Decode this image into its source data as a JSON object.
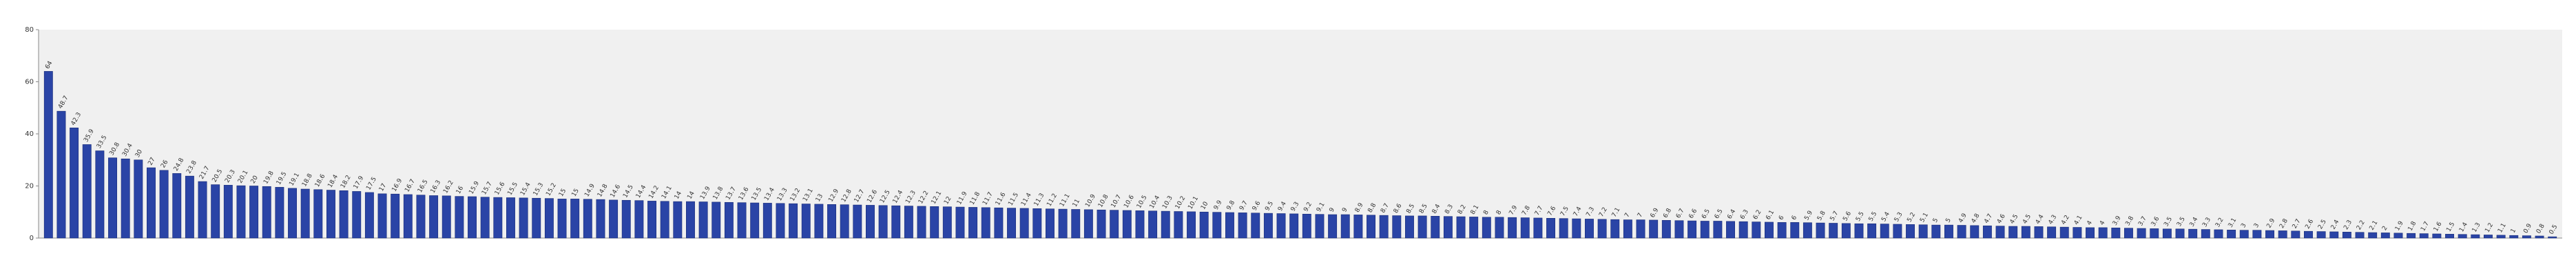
{
  "chart_data": {
    "type": "bar",
    "color": "#2a44a6",
    "ylim": [
      0,
      80
    ],
    "yticks": [
      0,
      20,
      40,
      60,
      80
    ],
    "grid": false,
    "values": [
      64,
      48.7,
      42.3,
      35.9,
      33.5,
      30.8,
      30.4,
      30,
      27,
      26,
      24.8,
      23.8,
      21.7,
      20.5,
      20.3,
      20.1,
      20,
      19.8,
      19.5,
      19.1,
      18.8,
      18.6,
      18.4,
      18.2,
      17.9,
      17.5,
      17,
      16.9,
      16.7,
      16.5,
      16.3,
      16.2,
      16,
      15.9,
      15.7,
      15.6,
      15.5,
      15.4,
      15.3,
      15.2,
      15,
      15,
      14.9,
      14.8,
      14.6,
      14.5,
      14.4,
      14.2,
      14.1,
      14,
      14,
      13.9,
      13.8,
      13.7,
      13.6,
      13.5,
      13.4,
      13.3,
      13.2,
      13.1,
      13,
      12.9,
      12.8,
      12.7,
      12.6,
      12.5,
      12.4,
      12.3,
      12.2,
      12.1,
      12,
      11.9,
      11.8,
      11.7,
      11.6,
      11.5,
      11.4,
      11.3,
      11.2,
      11.1,
      11,
      10.9,
      10.8,
      10.7,
      10.6,
      10.5,
      10.4,
      10.3,
      10.2,
      10.1,
      10,
      9.9,
      9.8,
      9.7,
      9.6,
      9.5,
      9.4,
      9.3,
      9.2,
      9.1,
      9,
      9,
      8.9,
      8.8,
      8.7,
      8.6,
      8.5,
      8.5,
      8.4,
      8.3,
      8.2,
      8.1,
      8,
      8,
      7.9,
      7.8,
      7.7,
      7.6,
      7.5,
      7.4,
      7.3,
      7.2,
      7.1,
      7,
      7,
      6.9,
      6.8,
      6.7,
      6.6,
      6.5,
      6.5,
      6.4,
      6.3,
      6.2,
      6.1,
      6,
      6,
      5.9,
      5.8,
      5.7,
      5.6,
      5.5,
      5.5,
      5.4,
      5.3,
      5.2,
      5.1,
      5,
      5,
      4.9,
      4.8,
      4.7,
      4.6,
      4.5,
      4.5,
      4.4,
      4.3,
      4.2,
      4.1,
      4,
      4,
      3.9,
      3.8,
      3.7,
      3.6,
      3.5,
      3.5,
      3.4,
      3.3,
      3.2,
      3.1,
      3,
      3,
      2.9,
      2.8,
      2.7,
      2.6,
      2.5,
      2.4,
      2.3,
      2.2,
      2.1,
      2,
      1.9,
      1.8,
      1.7,
      1.6,
      1.5,
      1.4,
      1.3,
      1.2,
      1.1,
      1,
      0.9,
      0.8,
      0.5
    ]
  }
}
